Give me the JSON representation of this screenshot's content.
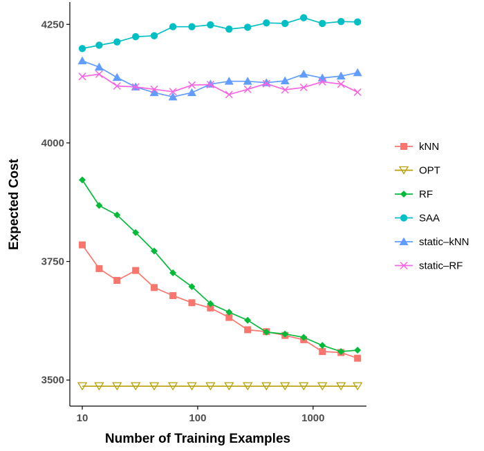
{
  "chart_data": {
    "type": "line",
    "title": "",
    "xlabel": "Number of Training Examples",
    "ylabel": "Expected Cost",
    "x_scale": "log",
    "xlim": [
      7.8,
      2900
    ],
    "ylim": [
      3445,
      4297
    ],
    "x_ticks": [
      10,
      100,
      1000
    ],
    "x_tick_labels": [
      "10",
      "100",
      "1000"
    ],
    "y_ticks": [
      3500,
      3750,
      4000,
      4250
    ],
    "y_tick_labels": [
      "3500",
      "3750",
      "4000",
      "4250"
    ],
    "grid": false,
    "legend_position": "right",
    "x": [
      10,
      14,
      20,
      29,
      42,
      61,
      89,
      129,
      187,
      271,
      394,
      571,
      829,
      1203,
      1746,
      2429
    ],
    "series": [
      {
        "name": "kNN",
        "color": "#F8766D",
        "marker": "square",
        "values": [
          3785,
          3735,
          3710,
          3731,
          3695,
          3678,
          3663,
          3652,
          3632,
          3606,
          3602,
          3594,
          3585,
          3560,
          3558,
          3546
        ]
      },
      {
        "name": "OPT",
        "color": "#B79F00",
        "marker": "triangle-down-open",
        "values": [
          3487,
          3487,
          3487,
          3487,
          3487,
          3487,
          3487,
          3487,
          3487,
          3487,
          3487,
          3487,
          3487,
          3487,
          3487,
          3487
        ]
      },
      {
        "name": "RF",
        "color": "#00BA38",
        "marker": "diamond",
        "values": [
          3922,
          3868,
          3848,
          3811,
          3772,
          3726,
          3697,
          3661,
          3643,
          3626,
          3601,
          3597,
          3590,
          3573,
          3560,
          3563
        ]
      },
      {
        "name": "SAA",
        "color": "#00BFC4",
        "marker": "circle",
        "values": [
          4199,
          4206,
          4213,
          4224,
          4226,
          4245,
          4245,
          4249,
          4240,
          4244,
          4253,
          4252,
          4264,
          4252,
          4256,
          4255
        ]
      },
      {
        "name": "static–kNN",
        "color": "#619CFF",
        "marker": "triangle-up",
        "values": [
          4173,
          4160,
          4138,
          4118,
          4106,
          4097,
          4106,
          4124,
          4130,
          4130,
          4127,
          4131,
          4145,
          4137,
          4141,
          4148
        ]
      },
      {
        "name": "static–RF",
        "color": "#F564E3",
        "marker": "x",
        "values": [
          4140,
          4145,
          4120,
          4118,
          4113,
          4108,
          4122,
          4123,
          4102,
          4113,
          4125,
          4112,
          4117,
          4129,
          4124,
          4107
        ]
      }
    ]
  }
}
